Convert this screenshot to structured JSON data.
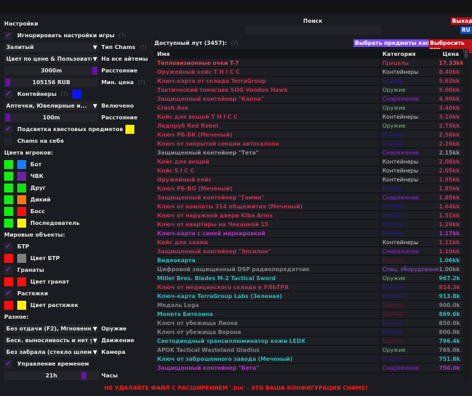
{
  "settings": {
    "title": "Настройки",
    "ignore_game_settings": {
      "label": "Игнорировать настройки игры",
      "hint": "(?)",
      "checked": true
    },
    "chams_type": {
      "value": "Залитый",
      "label": "Тип Chams",
      "hint": "(?)"
    },
    "all_items": {
      "value": "Цвет по цене & Пользовательс",
      "label": "На все айтемы"
    },
    "distance": {
      "value": "3000m",
      "label": "Расстояние",
      "level": 1.0
    },
    "min_price": {
      "value": "105156 RUB",
      "label": "Мин. цена",
      "hint": "(?)",
      "level": 0.0
    },
    "containers": {
      "label": "Контейнеры",
      "hint": "(?)",
      "checked": true,
      "color": "#0a14ff"
    },
    "enabled": {
      "value": "Аптечки, Ювелирные и...",
      "label": "Включено"
    },
    "distance2": {
      "value": "100m",
      "label": "Расстояние",
      "level": 0.0
    },
    "quest_highlight": {
      "label": "Подсветка квестовых предметов",
      "checked": true,
      "color": "#ffee00"
    },
    "self_chams": {
      "label": "Chams на себя",
      "checked": false
    }
  },
  "player_colors": {
    "title": "Цвета игроков:",
    "items": [
      {
        "label": "Бот",
        "c1": "#10f010",
        "c2": "#1080ff"
      },
      {
        "label": "ЧВК",
        "c1": "#10f010",
        "c2": "#7020a0"
      },
      {
        "label": "Друг",
        "c1": "#10f010",
        "c2": "#10e010"
      },
      {
        "label": "Дикий",
        "c1": "#10f010",
        "c2": "#ff7a10"
      },
      {
        "label": "Босс",
        "c1": "#10f010",
        "c2": "#ff1010"
      },
      {
        "label": "Последователь",
        "c1": "#10f010",
        "c2": "#ffee10"
      }
    ]
  },
  "world": {
    "title": "Мировые объекты:",
    "btr": {
      "label": "БТР",
      "checked": true
    },
    "btr_color": {
      "label": "Цвет БТР",
      "c1": "#ff1010",
      "c2": "#808080"
    },
    "grenades": {
      "label": "Гранаты",
      "checked": true
    },
    "grenade_color": {
      "label": "Цвет гранат",
      "c1": "#ff1010",
      "c2": "#ff1010"
    },
    "tripwires": {
      "label": "Растяжки",
      "checked": true
    },
    "tripwire_color": {
      "label": "Цвет растяжек",
      "c1": "#ff1010",
      "c2": "#ffee10"
    }
  },
  "misc": {
    "title": "Разное:",
    "weapon": {
      "value": "Без отдачи (F2), Мгновенное п",
      "label": "Оружие"
    },
    "movement": {
      "value": "Беск. выносливость и нет уста",
      "label": "Движение"
    },
    "camera": {
      "value": "Без забрала (стекло шлема)",
      "label": "Камера"
    },
    "time_control": {
      "label": "Управление временем",
      "checked": true
    },
    "hours": {
      "value": "21h",
      "label": "Часы",
      "level": 0.87
    }
  },
  "search": {
    "title": "Поиск",
    "placeholder": "",
    "value": ""
  },
  "exit_label": "Выход",
  "lang_label": "RU",
  "loot": {
    "title": "Доступный лут (3457):",
    "hint": "(?)",
    "kappa_button": "Выбрать предметы каппа",
    "drop_button": "Выбросить все",
    "columns": [
      "Имя",
      "Категория",
      "Цена"
    ],
    "rows": [
      [
        "Тепловизионные очки T-7",
        "Прицелы",
        "17.33kk",
        "#e8404f",
        "#e8404f",
        "#e8404f"
      ],
      [
        "Оружейный кейс T H I C C",
        "Контейнеры",
        "8.40kk",
        "#c0304f",
        "#c8c8c8",
        "#c0304f"
      ],
      [
        "Ключ-карта от склада TerraGroup",
        "Ключи",
        "5.63kk",
        "#c0304f",
        "#2018a8",
        "#c0304f"
      ],
      [
        "Тактический томагавк SOG Voodoo Hawk",
        "Оружие",
        "5.00kk",
        "#c0304f",
        "#70c070",
        "#c0304f"
      ],
      [
        "Защищенный контейнер \"Каппа\"",
        "Снаряжение",
        "4.90kk",
        "#c0304f",
        "#9a20e0",
        "#c0304f"
      ],
      [
        "Crash Axe",
        "Оружие",
        "3.40kk",
        "#c0304f",
        "#70c070",
        "#c0304f"
      ],
      [
        "Кейс для вещей T H I C C",
        "Контейнеры",
        "3.10kk",
        "#c0304f",
        "#c8c8c8",
        "#c0304f"
      ],
      [
        "Ледоруб Red Rebel",
        "Оружие",
        "2.75kk",
        "#c0304f",
        "#70c070",
        "#c0304f"
      ],
      [
        "Ключ РБ-БК (Меченый)",
        "Ключи",
        "2.58kk",
        "#c0304f",
        "#2018a8",
        "#c0304f"
      ],
      [
        "Ключ от закрытой секции автосалона",
        "Ключи",
        "2.26kk",
        "#c0304f",
        "#2018a8",
        "#c0304f"
      ],
      [
        "Защищенный контейнер \"Тета\"",
        "Снаряжение",
        "2.15kk",
        "#909090",
        "#9a20e0",
        "#909090"
      ],
      [
        "Кейс для вещей",
        "Контейнеры",
        "2.08kk",
        "#c0304f",
        "#c8c8c8",
        "#c0304f"
      ],
      [
        "Кейс S I C C",
        "Контейнеры",
        "2.05kk",
        "#c0304f",
        "#c8c8c8",
        "#c0304f"
      ],
      [
        "Оружейный кейс",
        "Контейнеры",
        "1.95kk",
        "#c0304f",
        "#c8c8c8",
        "#c0304f"
      ],
      [
        "Ключ РБ-ВО (Меченый)",
        "Ключи",
        "1.85kk",
        "#c0304f",
        "#2018a8",
        "#c0304f"
      ],
      [
        "Защищенный контейнер \"Гамма\"",
        "Снаряжение",
        "1.85kk",
        "#c0304f",
        "#9a20e0",
        "#c0304f"
      ],
      [
        "Ключ от комнаты 314 общежития (Меченый)",
        "Ключи",
        "1.64kk",
        "#c0304f",
        "#2018a8",
        "#c0304f"
      ],
      [
        "Ключ от наружной двери Kiba Arms",
        "Ключи",
        "1.51kk",
        "#c0304f",
        "#2018a8",
        "#c0304f"
      ],
      [
        "Ключ от квартиры на Чеканной 15",
        "Ключи",
        "1.29kk",
        "#c0304f",
        "#2018a8",
        "#c0304f"
      ],
      [
        "Ключ-карта с синей маркировкой",
        "Ключи",
        "1.17kk",
        "#b030c0",
        "#2018a8",
        "#b030c0"
      ],
      [
        "Кейс для хлама",
        "Контейнеры",
        "1.11kk",
        "#c0304f",
        "#c8c8c8",
        "#c0304f"
      ],
      [
        "Защищенный контейнер \"Эпсилон\"",
        "Снаряжение",
        "1.10kk",
        "#c0304f",
        "#9a20e0",
        "#c0304f"
      ],
      [
        "Видеокарта",
        "Бартер",
        "1.06kk",
        "#30b8b8",
        "#6a1830",
        "#30b8b8"
      ],
      [
        "Цифровой защищенный DSP радиопередатчик",
        "Спец. оборудование",
        "1.00kk",
        "#808080",
        "#9a50e0",
        "#808080"
      ],
      [
        "Miller Bros. Blades M-2 Tactical Sword",
        "Оружие",
        "967.2k",
        "#30b8b8",
        "#70c070",
        "#30b8b8"
      ],
      [
        "Ключ от медицинского склада в УЛЬТРА",
        "Ключи",
        "914.3k",
        "#c0304f",
        "#2018a8",
        "#c0304f"
      ],
      [
        "Ключ-карта TerraGroup Labs (Зеленая)",
        "Ключи",
        "913.8k",
        "#30b8b8",
        "#2018a8",
        "#30b8b8"
      ],
      [
        "Медаль Lega",
        "Бартер",
        "900.0k",
        "#808080",
        "#6a1830",
        "#808080"
      ],
      [
        "Монета Биткоина",
        "Бартер",
        "869.6k",
        "#30b8b8",
        "#6a1830",
        "#30b8b8"
      ],
      [
        "Ключ от убежища Лиона",
        "Ключи",
        "850.0k",
        "#808080",
        "#2018a8",
        "#808080"
      ],
      [
        "Ключ от убежища Ворона",
        "Ключи",
        "800.0k",
        "#808080",
        "#2018a8",
        "#808080"
      ],
      [
        "Светодиодный трансиллюминатор кожи LEDX",
        "Бартер",
        "796.4k",
        "#30b8b8",
        "#6a1830",
        "#30b8b8"
      ],
      [
        "APOK Tactical Wasteland Gladius",
        "Оружие",
        "765.0k",
        "#808080",
        "#70c070",
        "#808080"
      ],
      [
        "Ключ от заброшенного завода (Меченый)",
        "Ключи",
        "751.8k",
        "#30b8b8",
        "#2018a8",
        "#30b8b8"
      ],
      [
        "Защищенный контейнер \"Бета\"",
        "Снаряжение",
        "750.0k",
        "#b030c0",
        "#9a20e0",
        "#b030c0"
      ]
    ]
  },
  "warning": "НЕ УДАЛЯЙТЕ ФАЙЛ С РАСШИРЕНИЕМ '.bin' - ЭТО ВАША КОНФИГУРАЦИЯ CHAMS!"
}
